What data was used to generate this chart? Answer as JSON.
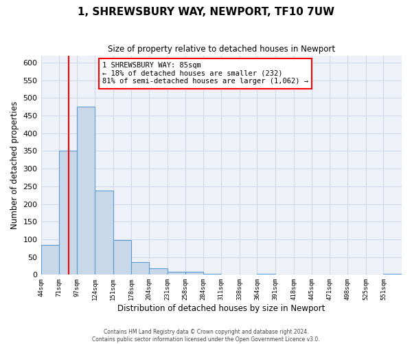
{
  "title": "1, SHREWSBURY WAY, NEWPORT, TF10 7UW",
  "subtitle": "Size of property relative to detached houses in Newport",
  "xlabel": "Distribution of detached houses by size in Newport",
  "ylabel": "Number of detached properties",
  "bar_edges": [
    44,
    71,
    97,
    124,
    151,
    178,
    204,
    231,
    258,
    284,
    311,
    338,
    364,
    391,
    418,
    445,
    471,
    498,
    525,
    551,
    578
  ],
  "bar_heights": [
    85,
    350,
    475,
    237,
    97,
    35,
    18,
    8,
    8,
    2,
    0,
    0,
    2,
    0,
    0,
    0,
    0,
    0,
    0,
    2
  ],
  "bar_color": "#c8d8e8",
  "bar_edge_color": "#5b9bd5",
  "property_line_x": 85,
  "property_line_color": "red",
  "annotation_text": "1 SHREWSBURY WAY: 85sqm\n← 18% of detached houses are smaller (232)\n81% of semi-detached houses are larger (1,062) →",
  "annotation_box_color": "red",
  "ylim": [
    0,
    620
  ],
  "yticks": [
    0,
    50,
    100,
    150,
    200,
    250,
    300,
    350,
    400,
    450,
    500,
    550,
    600
  ],
  "grid_color": "#d0d8e8",
  "footer_line1": "Contains HM Land Registry data © Crown copyright and database right 2024.",
  "footer_line2": "Contains public sector information licensed under the Open Government Licence v3.0.",
  "bg_color": "#eef2f8"
}
